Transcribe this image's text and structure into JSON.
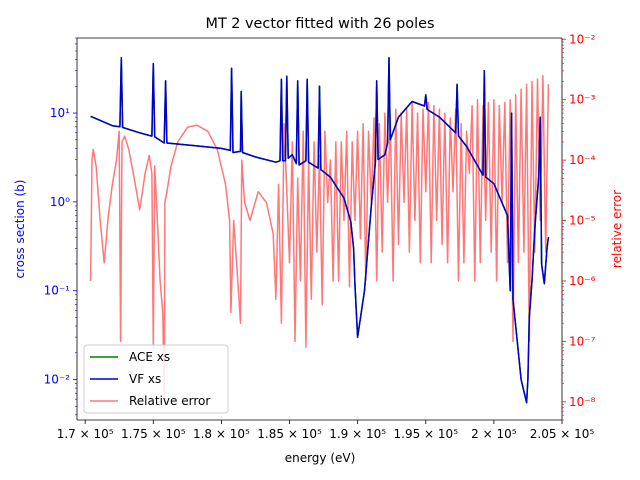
{
  "chart_data": {
    "type": "line",
    "title": "MT 2 vector fitted with 26 poles",
    "xlabel": "energy (eV)",
    "ylabel": "cross section (b)",
    "y2label": "relative error",
    "xlim": [
      169400,
      205000
    ],
    "ylim": [
      0.0035,
      70
    ],
    "y2lim": [
      5e-09,
      0.0105
    ],
    "yscale": "log",
    "y2scale": "log",
    "grid": false,
    "legend_position": "lower-left",
    "colors": {
      "ace": "#008000",
      "vf": "#0000cc",
      "error": "#ff7777",
      "left_axis": "#0000ff",
      "right_axis": "#ff0000"
    },
    "x_ticks": [
      {
        "value": 170000,
        "label": "1.7 × 10⁵"
      },
      {
        "value": 175000,
        "label": "1.75 × 10⁵"
      },
      {
        "value": 180000,
        "label": "1.8 × 10⁵"
      },
      {
        "value": 185000,
        "label": "1.85 × 10⁵"
      },
      {
        "value": 190000,
        "label": "1.9 × 10⁵"
      },
      {
        "value": 195000,
        "label": "1.95 × 10⁵"
      },
      {
        "value": 200000,
        "label": "2 × 10⁵"
      },
      {
        "value": 205000,
        "label": "2.05 × 10⁵"
      }
    ],
    "y_ticks": [
      {
        "value": 0.01,
        "label": "10⁻²"
      },
      {
        "value": 0.1,
        "label": "10⁻¹"
      },
      {
        "value": 1,
        "label": "10⁰"
      },
      {
        "value": 10,
        "label": "10¹"
      }
    ],
    "y2_ticks": [
      {
        "value": 1e-08,
        "label": "10⁻⁸"
      },
      {
        "value": 1e-07,
        "label": "10⁻⁷"
      },
      {
        "value": 1e-06,
        "label": "10⁻⁶"
      },
      {
        "value": 1e-05,
        "label": "10⁻⁵"
      },
      {
        "value": 0.0001,
        "label": "10⁻⁴"
      },
      {
        "value": 0.001,
        "label": "10⁻³"
      },
      {
        "value": 0.01,
        "label": "10⁻²"
      }
    ],
    "series": [
      {
        "name": "ACE xs",
        "axis": "left",
        "x": [
          170400,
          172000,
          172550,
          172650,
          172750,
          174000,
          174900,
          175000,
          175100,
          175800,
          175900,
          176000,
          178000,
          180000,
          180650,
          180750,
          180850,
          181400,
          181450,
          181550,
          182500,
          184000,
          184300,
          184400,
          184500,
          184700,
          184800,
          184900,
          185200,
          185500,
          185600,
          185700,
          186200,
          186300,
          186400,
          187100,
          187200,
          187300,
          188000,
          189000,
          189500,
          189700,
          189800,
          190000,
          190500,
          191000,
          191300,
          191400,
          191500,
          192000,
          192200,
          192300,
          192400,
          193000,
          194000,
          194900,
          195000,
          195100,
          196000,
          197200,
          197300,
          197400,
          198000,
          199200,
          199300,
          199400,
          200000,
          201000,
          201200,
          201300,
          201400,
          202000,
          202400,
          202500,
          202600,
          202800,
          203000,
          203300,
          203400,
          203500,
          203700,
          203900,
          204000
        ],
        "values": [
          9.2,
          7.2,
          7.0,
          42,
          6.9,
          6.0,
          5.5,
          36,
          5.4,
          4.6,
          23,
          4.6,
          4.3,
          4.0,
          3.8,
          32,
          3.6,
          3.7,
          17.5,
          3.6,
          3.2,
          2.8,
          2.9,
          24,
          2.9,
          2.9,
          26,
          3.1,
          3.4,
          2.7,
          23,
          2.6,
          2.9,
          24,
          2.8,
          2.4,
          20,
          2.3,
          1.9,
          1.1,
          0.6,
          0.3,
          0.12,
          0.03,
          0.1,
          0.9,
          2.8,
          23,
          3.0,
          3.4,
          4.6,
          42,
          5.0,
          9.0,
          13.5,
          12,
          16,
          11,
          9.0,
          6.0,
          21,
          5.5,
          4.2,
          2.0,
          30,
          1.9,
          1.6,
          0.7,
          0.1,
          10,
          0.08,
          0.01,
          0.0055,
          0.01,
          0.05,
          0.13,
          0.5,
          2.0,
          9.0,
          0.2,
          0.12,
          0.3,
          0.4
        ]
      },
      {
        "name": "VF xs",
        "axis": "left",
        "x": [
          170400,
          172000,
          172550,
          172650,
          172750,
          174000,
          174900,
          175000,
          175100,
          175800,
          175900,
          176000,
          178000,
          180000,
          180650,
          180750,
          180850,
          181400,
          181450,
          181550,
          182500,
          184000,
          184300,
          184400,
          184500,
          184700,
          184800,
          184900,
          185200,
          185500,
          185600,
          185700,
          186200,
          186300,
          186400,
          187100,
          187200,
          187300,
          188000,
          189000,
          189500,
          189700,
          189800,
          190000,
          190500,
          191000,
          191300,
          191400,
          191500,
          192000,
          192200,
          192300,
          192400,
          193000,
          194000,
          194900,
          195000,
          195100,
          196000,
          197200,
          197300,
          197400,
          198000,
          199200,
          199300,
          199400,
          200000,
          201000,
          201200,
          201300,
          201400,
          202000,
          202400,
          202500,
          202600,
          202800,
          203000,
          203300,
          203400,
          203500,
          203700,
          203900,
          204000
        ],
        "values": [
          9.2,
          7.2,
          7.0,
          42,
          6.9,
          6.0,
          5.5,
          36,
          5.4,
          4.6,
          23,
          4.6,
          4.3,
          4.0,
          3.8,
          32,
          3.6,
          3.7,
          17.5,
          3.6,
          3.2,
          2.8,
          2.9,
          24,
          2.9,
          2.9,
          26,
          3.1,
          3.4,
          2.7,
          23,
          2.6,
          2.9,
          24,
          2.8,
          2.4,
          20,
          2.3,
          1.9,
          1.1,
          0.6,
          0.3,
          0.12,
          0.03,
          0.1,
          0.9,
          2.8,
          23,
          3.0,
          3.4,
          4.6,
          42,
          5.0,
          9.0,
          13.5,
          12,
          16,
          11,
          9.0,
          6.0,
          21,
          5.5,
          4.2,
          2.0,
          30,
          1.9,
          1.6,
          0.7,
          0.1,
          10,
          0.08,
          0.01,
          0.0055,
          0.01,
          0.05,
          0.13,
          0.5,
          2.0,
          9.0,
          0.2,
          0.12,
          0.3,
          0.4
        ]
      },
      {
        "name": "Relative error",
        "axis": "right",
        "x": [
          170400,
          170500,
          170600,
          170800,
          171100,
          171400,
          171700,
          172000,
          172300,
          172500,
          172600,
          172700,
          172900,
          173200,
          173600,
          174000,
          174400,
          174700,
          174900,
          175000,
          175100,
          175300,
          175500,
          175700,
          175800,
          175850,
          176000,
          176300,
          176800,
          177500,
          178200,
          179000,
          179700,
          180300,
          180600,
          180700,
          180900,
          181200,
          181400,
          181500,
          181700,
          182100,
          182700,
          183300,
          183800,
          184000,
          184200,
          184400,
          184600,
          184800,
          185000,
          185200,
          185400,
          185600,
          185800,
          186000,
          186200,
          186400,
          186600,
          186800,
          187000,
          187200,
          187400,
          187600,
          187800,
          188000,
          188200,
          188400,
          188600,
          188800,
          189000,
          189200,
          189400,
          189600,
          189800,
          190000,
          190200,
          190400,
          190600,
          190800,
          191000,
          191200,
          191400,
          191600,
          191800,
          192000,
          192200,
          192400,
          192600,
          192800,
          193000,
          193200,
          193400,
          193600,
          193800,
          194000,
          194200,
          194400,
          194600,
          194800,
          195000,
          195200,
          195400,
          195600,
          195800,
          196000,
          196200,
          196400,
          196600,
          196800,
          197000,
          197200,
          197400,
          197600,
          197800,
          198000,
          198200,
          198400,
          198600,
          198800,
          199000,
          199200,
          199400,
          199600,
          199800,
          200000,
          200200,
          200400,
          200600,
          200800,
          201000,
          201200,
          201400,
          201600,
          201800,
          202000,
          202200,
          202400,
          202600,
          202800,
          203000,
          203200,
          203400,
          203600,
          203800,
          204000
        ],
        "values": [
          1e-06,
          0.0001,
          0.00015,
          8e-05,
          1e-05,
          2e-06,
          1.2e-05,
          4e-05,
          0.0001,
          0.0003,
          1e-07,
          0.0002,
          0.00025,
          0.00015,
          5e-05,
          1.5e-05,
          6e-05,
          0.00012,
          6e-05,
          8e-08,
          8e-05,
          1e-05,
          1e-06,
          3e-07,
          1e-08,
          2e-05,
          3e-05,
          8e-05,
          0.0002,
          0.00035,
          0.00038,
          0.0003,
          0.00015,
          4e-05,
          1e-05,
          3e-07,
          1e-05,
          1e-06,
          2e-07,
          0.0001,
          2e-05,
          1e-05,
          3e-05,
          2e-05,
          6e-06,
          5e-07,
          4e-05,
          2e-07,
          0.0004,
          3e-05,
          2e-06,
          0.0002,
          1e-07,
          5e-05,
          1e-06,
          0.0003,
          8e-08,
          0.0001,
          5e-07,
          0.0002,
          3e-06,
          0.00012,
          4e-07,
          0.0003,
          2e-05,
          0.0001,
          1e-06,
          0.0002,
          1e-06,
          0.0002,
          1e-05,
          0.0003,
          8e-07,
          0.0002,
          1e-05,
          0.0003,
          5e-06,
          0.0004,
          1e-06,
          0.0003,
          2e-05,
          0.0005,
          1e-06,
          0.0004,
          3e-06,
          0.0006,
          2e-05,
          0.0005,
          1e-06,
          0.0007,
          4e-06,
          0.0006,
          2e-05,
          0.0007,
          3e-06,
          0.0009,
          1e-05,
          0.0006,
          2e-06,
          0.0007,
          3e-05,
          0.0009,
          2e-06,
          0.0008,
          1e-05,
          0.0007,
          4e-06,
          0.0006,
          2e-06,
          0.0005,
          3e-05,
          0.0007,
          1e-06,
          0.0004,
          2e-06,
          0.0003,
          6e-05,
          0.0008,
          1e-06,
          0.001,
          2e-06,
          0.0008,
          1e-05,
          0.0009,
          3e-06,
          0.001,
          1e-06,
          0.0008,
          2e-05,
          0.0009,
          2e-06,
          0.001,
          1e-07,
          0.0012,
          2e-06,
          0.0015,
          3e-06,
          0.0018,
          1e-07,
          0.002,
          3e-06,
          0.0022,
          1e-05,
          0.0025,
          3e-06,
          0.0018
        ]
      }
    ]
  }
}
